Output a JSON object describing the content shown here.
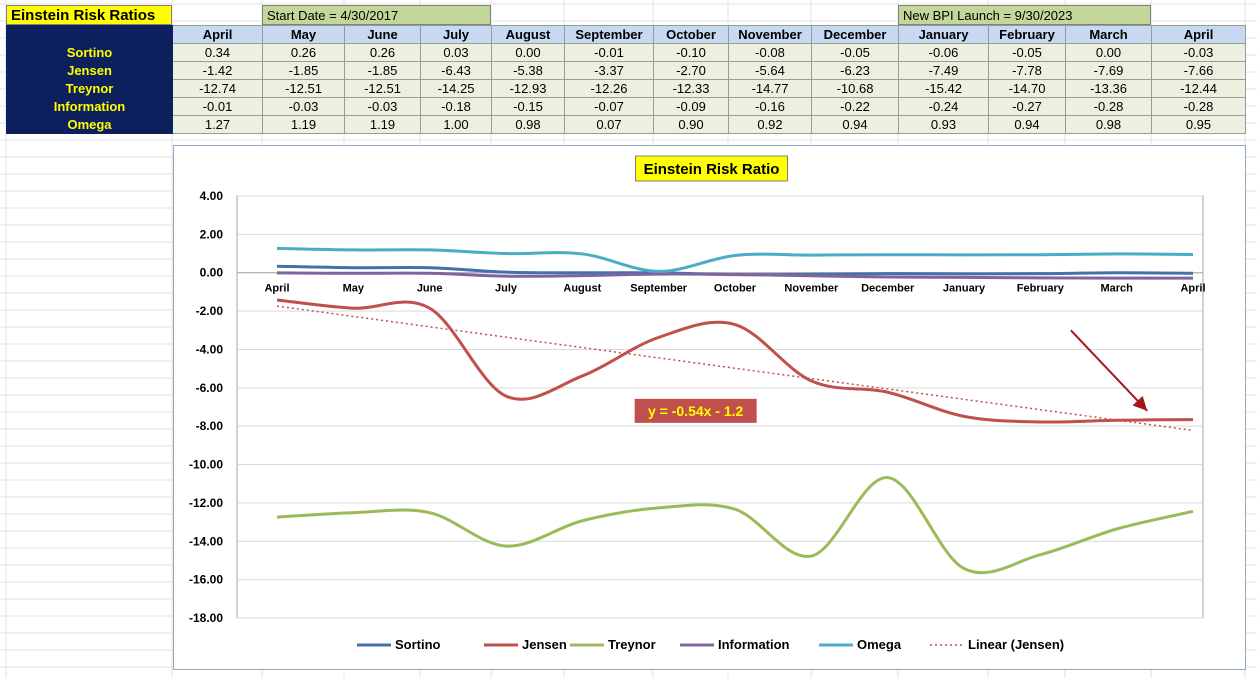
{
  "sheet": {
    "title": "Einstein Risk Ratios",
    "start_date": "Start Date = 4/30/2017",
    "bpi_launch": "New BPI Launch = 9/30/2023"
  },
  "table": {
    "months": [
      "April",
      "May",
      "June",
      "July",
      "August",
      "September",
      "October",
      "November",
      "December",
      "January",
      "February",
      "March",
      "April"
    ],
    "rows": [
      {
        "label": "Sortino",
        "values": [
          "0.34",
          "0.26",
          "0.26",
          "0.03",
          "0.00",
          "-0.01",
          "-0.10",
          "-0.08",
          "-0.05",
          "-0.06",
          "-0.05",
          "0.00",
          "-0.03"
        ]
      },
      {
        "label": "Jensen",
        "values": [
          "-1.42",
          "-1.85",
          "-1.85",
          "-6.43",
          "-5.38",
          "-3.37",
          "-2.70",
          "-5.64",
          "-6.23",
          "-7.49",
          "-7.78",
          "-7.69",
          "-7.66"
        ]
      },
      {
        "label": "Treynor",
        "values": [
          "-12.74",
          "-12.51",
          "-12.51",
          "-14.25",
          "-12.93",
          "-12.26",
          "-12.33",
          "-14.77",
          "-10.68",
          "-15.42",
          "-14.70",
          "-13.36",
          "-12.44"
        ]
      },
      {
        "label": "Information",
        "values": [
          "-0.01",
          "-0.03",
          "-0.03",
          "-0.18",
          "-0.15",
          "-0.07",
          "-0.09",
          "-0.16",
          "-0.22",
          "-0.24",
          "-0.27",
          "-0.28",
          "-0.28"
        ]
      },
      {
        "label": "Omega",
        "values": [
          "1.27",
          "1.19",
          "1.19",
          "1.00",
          "0.98",
          "0.07",
          "0.90",
          "0.92",
          "0.94",
          "0.93",
          "0.94",
          "0.98",
          "0.95"
        ]
      }
    ]
  },
  "chart_data": {
    "type": "line",
    "title": "Einstein Risk Ratio",
    "categories": [
      "April",
      "May",
      "June",
      "July",
      "August",
      "September",
      "October",
      "November",
      "December",
      "January",
      "February",
      "March",
      "April"
    ],
    "ylim": [
      -18,
      4
    ],
    "ytick_step": 2,
    "yticks": [
      "4.00",
      "2.00",
      "0.00",
      "-2.00",
      "-4.00",
      "-6.00",
      "-8.00",
      "-10.00",
      "-12.00",
      "-14.00",
      "-16.00",
      "-18.00"
    ],
    "grid": true,
    "smoothed": true,
    "legend_position": "bottom",
    "series": [
      {
        "name": "Sortino",
        "color": "#4472a8",
        "values": [
          0.34,
          0.26,
          0.26,
          0.03,
          0.0,
          -0.01,
          -0.1,
          -0.08,
          -0.05,
          -0.06,
          -0.05,
          0.0,
          -0.03
        ]
      },
      {
        "name": "Jensen",
        "color": "#c0504d",
        "values": [
          -1.42,
          -1.85,
          -1.85,
          -6.43,
          -5.38,
          -3.37,
          -2.7,
          -5.64,
          -6.23,
          -7.49,
          -7.78,
          -7.69,
          -7.66
        ]
      },
      {
        "name": "Treynor",
        "color": "#9bbb59",
        "values": [
          -12.74,
          -12.51,
          -12.51,
          -14.25,
          -12.93,
          -12.26,
          -12.33,
          -14.77,
          -10.68,
          -15.42,
          -14.7,
          -13.36,
          -12.44
        ]
      },
      {
        "name": "Information",
        "color": "#8064a2",
        "values": [
          -0.01,
          -0.03,
          -0.03,
          -0.18,
          -0.15,
          -0.07,
          -0.09,
          -0.16,
          -0.22,
          -0.24,
          -0.27,
          -0.28,
          -0.28
        ]
      },
      {
        "name": "Omega",
        "color": "#4bacc6",
        "values": [
          1.27,
          1.19,
          1.19,
          1.0,
          0.98,
          0.07,
          0.9,
          0.92,
          0.94,
          0.93,
          0.94,
          0.98,
          0.95
        ]
      }
    ],
    "trendline": {
      "name": "Linear (Jensen)",
      "color": "#c0504d",
      "slope": -0.54,
      "intercept": -1.2,
      "equation": "y = -0.54x - 1.2"
    },
    "annotations": [
      {
        "type": "arrow",
        "color": "#a3171a",
        "from": {
          "x": 10.4,
          "y": -3.0
        },
        "to": {
          "x": 11.4,
          "y": -7.2
        }
      }
    ],
    "equation_label_bg": "#c0504d",
    "equation_label_color": "#ffff00"
  }
}
